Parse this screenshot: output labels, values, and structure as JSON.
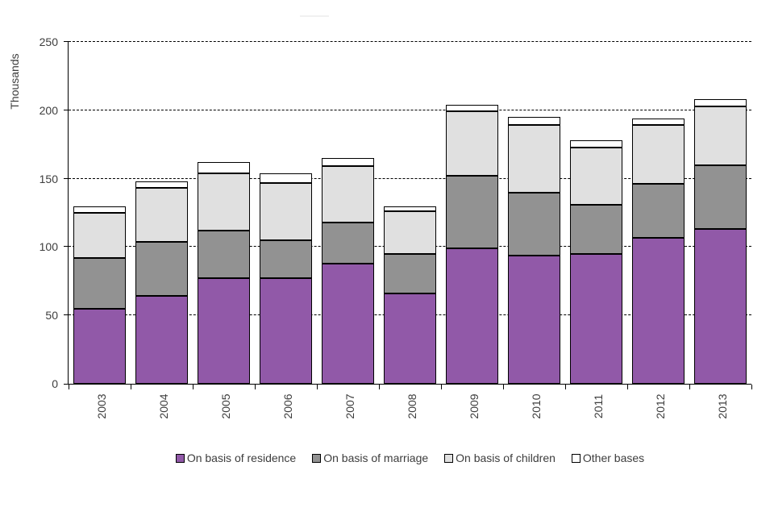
{
  "chart_data": {
    "type": "bar",
    "stacked": true,
    "title": "",
    "ylabel": "Thousands",
    "xlabel": "",
    "ylim": [
      0,
      250
    ],
    "yticks": [
      0,
      50,
      100,
      150,
      200,
      250
    ],
    "grid": "horizontal-dashed",
    "legend_position": "bottom",
    "categories": [
      "2003",
      "2004",
      "2005",
      "2006",
      "2007",
      "2008",
      "2009",
      "2010",
      "2011",
      "2012",
      "2013"
    ],
    "series": [
      {
        "name": "On basis of residence",
        "color": "#9159A8",
        "values": [
          55,
          64,
          77,
          77,
          88,
          66,
          99,
          94,
          95,
          107,
          113
        ]
      },
      {
        "name": "On basis of marriage",
        "color": "#929292",
        "values": [
          37,
          40,
          35,
          28,
          30,
          29,
          53,
          46,
          36,
          39,
          47
        ]
      },
      {
        "name": "On basis of children",
        "color": "#E0E0E0",
        "values": [
          33,
          39,
          42,
          42,
          41,
          31,
          47,
          49,
          42,
          43,
          43
        ]
      },
      {
        "name": "Other bases",
        "color": "#FFFFFF",
        "values": [
          5,
          5,
          8,
          7,
          6,
          4,
          5,
          6,
          5,
          5,
          5
        ]
      }
    ],
    "totals": [
      130,
      148,
      162,
      154,
      165,
      130,
      204,
      195,
      178,
      194,
      208
    ]
  },
  "axis": {
    "y_title": "Thousands"
  }
}
